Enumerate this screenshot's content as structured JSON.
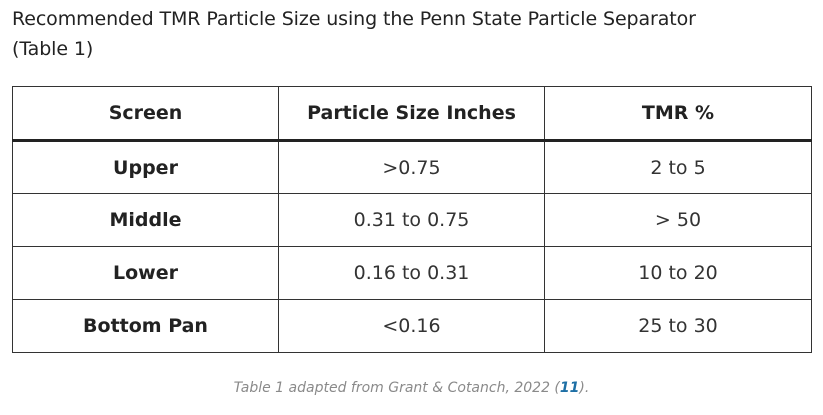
{
  "title": {
    "line1": "Recommended TMR Particle Size using the Penn State Particle Separator",
    "line2": "(Table 1)"
  },
  "table": {
    "headers": [
      "Screen",
      "Particle Size Inches",
      "TMR %"
    ],
    "rows": [
      [
        "Upper",
        ">0.75",
        "2 to 5"
      ],
      [
        "Middle",
        "0.31 to 0.75",
        "> 50"
      ],
      [
        "Lower",
        "0.16 to 0.31",
        "10 to 20"
      ],
      [
        "Bottom Pan",
        "<0.16",
        "25 to 30"
      ]
    ]
  },
  "caption": {
    "prefix": "Table 1 adapted from Grant & Cotanch, 2022 (",
    "ref": "11",
    "suffix": ")."
  }
}
